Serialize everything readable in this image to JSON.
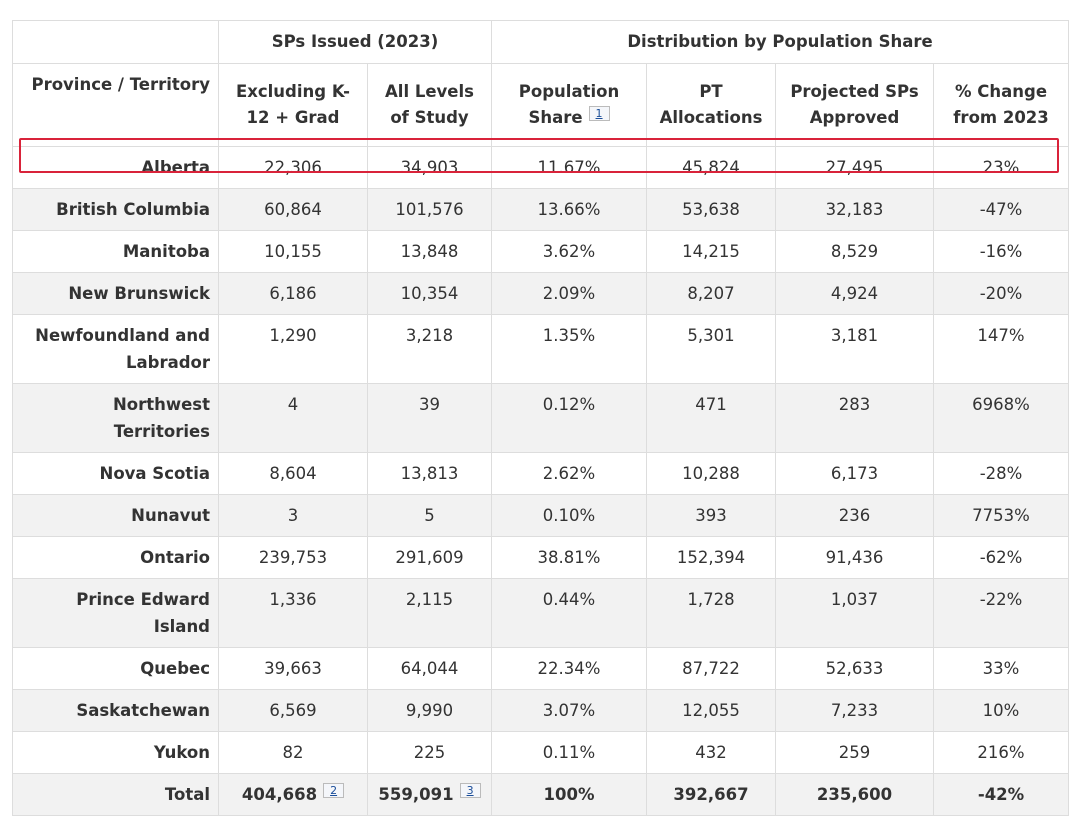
{
  "headers": {
    "group_empty": "",
    "group_issued": "SPs Issued (2023)",
    "group_distribution": "Distribution by Population Share",
    "province": "Province / Territory",
    "excluding": "Excluding K-12 + Grad",
    "all_levels": "All Levels of Study",
    "population_share": "Population Share",
    "population_share_fn": "1",
    "pt_allocations": "PT Allocations",
    "projected": "Projected SPs Approved",
    "pct_change": "% Change from 2023"
  },
  "rows": [
    {
      "province": "Alberta",
      "excluding": "22,306",
      "all_levels": "34,903",
      "pop_share": "11.67%",
      "pt_alloc": "45,824",
      "projected": "27,495",
      "change": "23%"
    },
    {
      "province": "British Columbia",
      "excluding": "60,864",
      "all_levels": "101,576",
      "pop_share": "13.66%",
      "pt_alloc": "53,638",
      "projected": "32,183",
      "change": "-47%"
    },
    {
      "province": "Manitoba",
      "excluding": "10,155",
      "all_levels": "13,848",
      "pop_share": "3.62%",
      "pt_alloc": "14,215",
      "projected": "8,529",
      "change": "-16%"
    },
    {
      "province": "New Brunswick",
      "excluding": "6,186",
      "all_levels": "10,354",
      "pop_share": "2.09%",
      "pt_alloc": "8,207",
      "projected": "4,924",
      "change": "-20%"
    },
    {
      "province": "Newfoundland and Labrador",
      "excluding": "1,290",
      "all_levels": "3,218",
      "pop_share": "1.35%",
      "pt_alloc": "5,301",
      "projected": "3,181",
      "change": "147%"
    },
    {
      "province": "Northwest Territories",
      "excluding": "4",
      "all_levels": "39",
      "pop_share": "0.12%",
      "pt_alloc": "471",
      "projected": "283",
      "change": "6968%"
    },
    {
      "province": "Nova Scotia",
      "excluding": "8,604",
      "all_levels": "13,813",
      "pop_share": "2.62%",
      "pt_alloc": "10,288",
      "projected": "6,173",
      "change": "-28%"
    },
    {
      "province": "Nunavut",
      "excluding": "3",
      "all_levels": "5",
      "pop_share": "0.10%",
      "pt_alloc": "393",
      "projected": "236",
      "change": "7753%"
    },
    {
      "province": "Ontario",
      "excluding": "239,753",
      "all_levels": "291,609",
      "pop_share": "38.81%",
      "pt_alloc": "152,394",
      "projected": "91,436",
      "change": "-62%"
    },
    {
      "province": "Prince Edward Island",
      "excluding": "1,336",
      "all_levels": "2,115",
      "pop_share": "0.44%",
      "pt_alloc": "1,728",
      "projected": "1,037",
      "change": "-22%"
    },
    {
      "province": "Quebec",
      "excluding": "39,663",
      "all_levels": "64,044",
      "pop_share": "22.34%",
      "pt_alloc": "87,722",
      "projected": "52,633",
      "change": "33%"
    },
    {
      "province": "Saskatchewan",
      "excluding": "6,569",
      "all_levels": "9,990",
      "pop_share": "3.07%",
      "pt_alloc": "12,055",
      "projected": "7,233",
      "change": "10%"
    },
    {
      "province": "Yukon",
      "excluding": "82",
      "all_levels": "225",
      "pop_share": "0.11%",
      "pt_alloc": "432",
      "projected": "259",
      "change": "216%"
    }
  ],
  "total": {
    "province": "Total",
    "excluding": "404,668",
    "excluding_fn": "2",
    "all_levels": "559,091",
    "all_levels_fn": "3",
    "pop_share": "100%",
    "pt_alloc": "392,667",
    "projected": "235,600",
    "change": "-42%"
  },
  "highlight_color": "#d9233a"
}
